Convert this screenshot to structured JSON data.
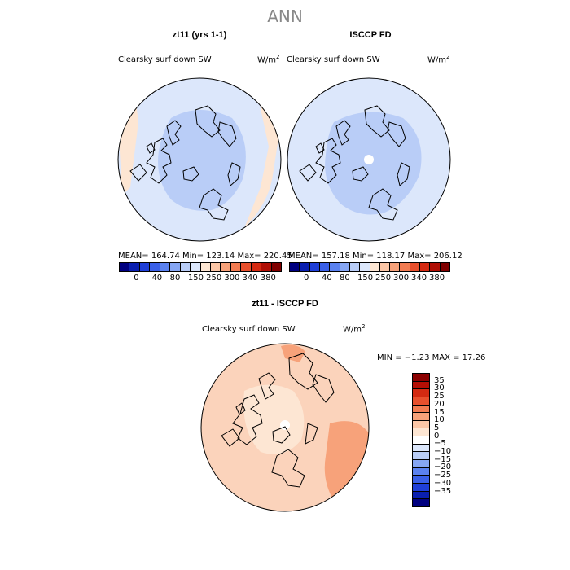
{
  "title": "ANN",
  "panels": [
    {
      "title": "zt11 (yrs 1-1)",
      "variable": "Clearsky surf down SW",
      "units": "W/m",
      "units_sup": "2",
      "stats": "MEAN= 164.74   Min= 123.14   Max= 220.45"
    },
    {
      "title": "ISCCP FD",
      "variable": "Clearsky surf down SW",
      "units": "W/m",
      "units_sup": "2",
      "stats": "MEAN= 157.18   Min= 118.17   Max= 206.12"
    }
  ],
  "diff": {
    "title": "zt11 - ISCCP FD",
    "variable": "Clearsky surf down SW",
    "units": "W/m",
    "units_sup": "2",
    "stats": "MIN =  −1.23  MAX =  17.26"
  },
  "colorbar": {
    "labels": [
      "0",
      "40",
      "80",
      "150",
      "250",
      "300",
      "340",
      "380"
    ],
    "colors": [
      "#000080",
      "#0a1fb0",
      "#1f3fd8",
      "#3a60e8",
      "#5b82f0",
      "#86a6f3",
      "#b9cdf7",
      "#dce7fb",
      "#fde6d3",
      "#fbc6a6",
      "#f7a27a",
      "#f27c52",
      "#e8502d",
      "#d42a12",
      "#b00f05",
      "#7f0000"
    ]
  },
  "diff_colorbar": {
    "labels": [
      "35",
      "30",
      "25",
      "20",
      "15",
      "10",
      "5",
      "0",
      "−5",
      "−10",
      "−15",
      "−20",
      "−25",
      "−30",
      "−35"
    ],
    "colors": [
      "#8b0000",
      "#b40f05",
      "#d42a12",
      "#e8502d",
      "#f27c52",
      "#f7a27a",
      "#fbc6a6",
      "#fde6d3",
      "#ffffff",
      "#dce7fb",
      "#b9cdf7",
      "#86a6f3",
      "#5b82f0",
      "#3a60e8",
      "#1f3fd8",
      "#0a1fb0",
      "#000080"
    ]
  },
  "map_colors": {
    "ocean_light": "#dce7fb",
    "arctic_core": "#b9cdf7",
    "land_edge": "#fde6d3",
    "diff_base": "#fbd3bb",
    "diff_warm": "#f7a27a",
    "diff_pale": "#fde6d3"
  }
}
